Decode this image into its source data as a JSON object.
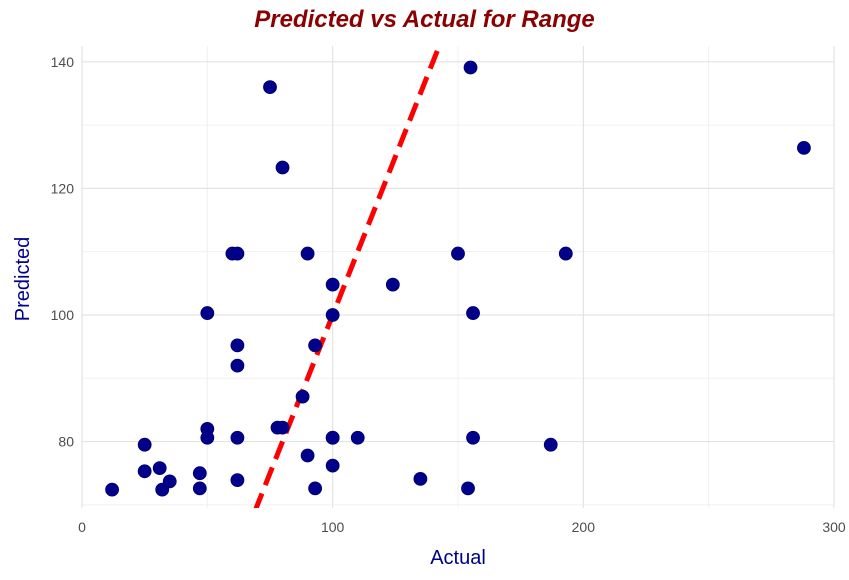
{
  "chart_data": {
    "type": "scatter",
    "title": "Predicted vs Actual for Range",
    "xlabel": "Actual",
    "ylabel": "Predicted",
    "xlim": [
      0,
      300
    ],
    "ylim": [
      69.5,
      142.5
    ],
    "x_ticks": [
      0,
      100,
      200,
      300
    ],
    "y_ticks": [
      80,
      100,
      120,
      140
    ],
    "grid": true,
    "colors": {
      "title": "#8b0000",
      "axis_title": "#00008b",
      "points": "#00008b",
      "reference_line": "#ff0000"
    },
    "reference_line": {
      "type": "identity",
      "style": "dashed",
      "from": [
        69,
        69
      ],
      "to": [
        143,
        143
      ]
    },
    "x": [
      12,
      25,
      25,
      31,
      32,
      35,
      47,
      47,
      50,
      50,
      50,
      60,
      62,
      62,
      62,
      62,
      62,
      75,
      78,
      80,
      80,
      88,
      90,
      90,
      93,
      93,
      100,
      100,
      100,
      100,
      100,
      110,
      124,
      135,
      150,
      154,
      155,
      156,
      156,
      187,
      193,
      288
    ],
    "y": [
      72.4,
      75.3,
      79.5,
      75.8,
      72.4,
      73.7,
      75.0,
      72.6,
      100.3,
      82.0,
      80.6,
      109.7,
      109.7,
      95.2,
      92.0,
      80.6,
      73.9,
      136.0,
      82.2,
      82.2,
      123.3,
      87.1,
      109.7,
      77.8,
      95.2,
      72.6,
      104.8,
      100.0,
      80.6,
      76.2,
      80.6,
      80.6,
      104.8,
      74.1,
      109.7,
      72.6,
      139.1,
      100.3,
      80.6,
      79.5,
      109.7,
      126.4
    ]
  }
}
